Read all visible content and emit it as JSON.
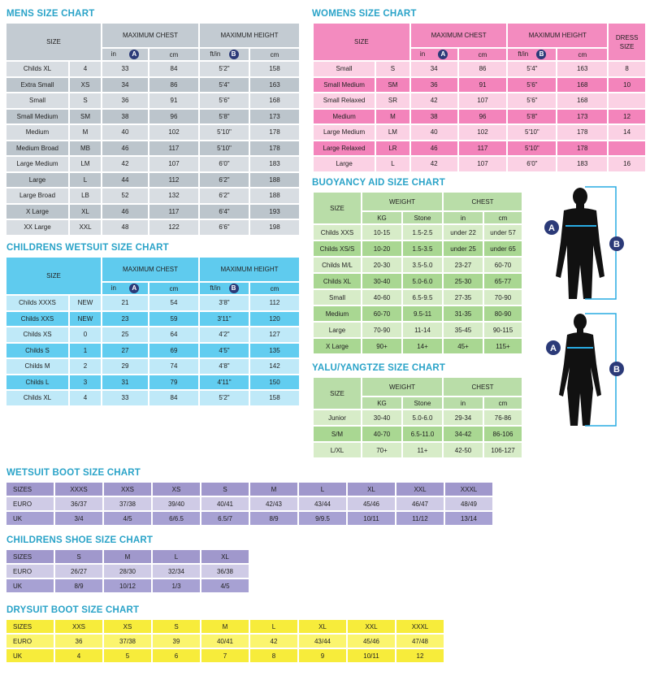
{
  "mens": {
    "title": "MENS SIZE CHART",
    "size_header": "SIZE",
    "chest_header": "MAXIMUM CHEST",
    "height_header": "MAXIMUM HEIGHT",
    "chest_units": [
      "in",
      "A",
      "cm"
    ],
    "height_units": [
      "ft/in",
      "B",
      "cm"
    ],
    "rows": [
      [
        "Childs XL",
        "4",
        "33",
        "84",
        "5'2\"",
        "158"
      ],
      [
        "Extra Small",
        "XS",
        "34",
        "86",
        "5'4\"",
        "163"
      ],
      [
        "Small",
        "S",
        "36",
        "91",
        "5'6\"",
        "168"
      ],
      [
        "Small Medium",
        "SM",
        "38",
        "96",
        "5'8\"",
        "173"
      ],
      [
        "Medium",
        "M",
        "40",
        "102",
        "5'10\"",
        "178"
      ],
      [
        "Medium Broad",
        "MB",
        "46",
        "117",
        "5'10\"",
        "178"
      ],
      [
        "Large Medium",
        "LM",
        "42",
        "107",
        "6'0\"",
        "183"
      ],
      [
        "Large",
        "L",
        "44",
        "112",
        "6'2\"",
        "188"
      ],
      [
        "Large Broad",
        "LB",
        "52",
        "132",
        "6'2\"",
        "188"
      ],
      [
        "X Large",
        "XL",
        "46",
        "117",
        "6'4\"",
        "193"
      ],
      [
        "XX Large",
        "XXL",
        "48",
        "122",
        "6'6\"",
        "198"
      ]
    ]
  },
  "childrens_wetsuit": {
    "title": "CHILDRENS WETSUIT SIZE CHART",
    "size_header": "SIZE",
    "chest_header": "MAXIMUM CHEST",
    "height_header": "MAXIMUM HEIGHT",
    "chest_units": [
      "in",
      "A",
      "cm"
    ],
    "height_units": [
      "ft/in",
      "B",
      "cm"
    ],
    "rows": [
      [
        "Childs XXXS",
        "NEW",
        "21",
        "54",
        "3'8\"",
        "112"
      ],
      [
        "Childs XXS",
        "NEW",
        "23",
        "59",
        "3'11\"",
        "120"
      ],
      [
        "Childs XS",
        "0",
        "25",
        "64",
        "4'2\"",
        "127"
      ],
      [
        "Childs S",
        "1",
        "27",
        "69",
        "4'5\"",
        "135"
      ],
      [
        "Childs M",
        "2",
        "29",
        "74",
        "4'8\"",
        "142"
      ],
      [
        "Childs L",
        "3",
        "31",
        "79",
        "4'11\"",
        "150"
      ],
      [
        "Childs XL",
        "4",
        "33",
        "84",
        "5'2\"",
        "158"
      ]
    ]
  },
  "womens": {
    "title": "WOMENS SIZE CHART",
    "size_header": "SIZE",
    "chest_header": "MAXIMUM CHEST",
    "height_header": "MAXIMUM HEIGHT",
    "dress_header": "DRESS SIZE",
    "chest_units": [
      "in",
      "A",
      "cm"
    ],
    "height_units": [
      "ft/in",
      "B",
      "cm"
    ],
    "rows": [
      [
        "Small",
        "S",
        "34",
        "86",
        "5'4\"",
        "163",
        "8"
      ],
      [
        "Small Medium",
        "SM",
        "36",
        "91",
        "5'6\"",
        "168",
        "10"
      ],
      [
        "Small Relaxed",
        "SR",
        "42",
        "107",
        "5'6\"",
        "168",
        ""
      ],
      [
        "Medium",
        "M",
        "38",
        "96",
        "5'8\"",
        "173",
        "12"
      ],
      [
        "Large Medium",
        "LM",
        "40",
        "102",
        "5'10\"",
        "178",
        "14"
      ],
      [
        "Large Relaxed",
        "LR",
        "46",
        "117",
        "5'10\"",
        "178",
        ""
      ],
      [
        "Large",
        "L",
        "42",
        "107",
        "6'0\"",
        "183",
        "16"
      ]
    ]
  },
  "buoyancy": {
    "title": "BUOYANCY AID SIZE CHART",
    "size_header": "SIZE",
    "weight_header": "WEIGHT",
    "chest_header": "CHEST",
    "weight_units": [
      "KG",
      "Stone"
    ],
    "chest_units": [
      "in",
      "cm"
    ],
    "rows": [
      [
        "Childs XXS",
        "10-15",
        "1.5-2.5",
        "under 22",
        "under 57"
      ],
      [
        "Childs XS/S",
        "10-20",
        "1.5-3.5",
        "under 25",
        "under 65"
      ],
      [
        "Childs M/L",
        "20-30",
        "3.5-5.0",
        "23-27",
        "60-70"
      ],
      [
        "Childs XL",
        "30-40",
        "5.0-6.0",
        "25-30",
        "65-77"
      ],
      [
        "Small",
        "40-60",
        "6.5-9.5",
        "27-35",
        "70-90"
      ],
      [
        "Medium",
        "60-70",
        "9.5-11",
        "31-35",
        "80-90"
      ],
      [
        "Large",
        "70-90",
        "11-14",
        "35-45",
        "90-115"
      ],
      [
        "X Large",
        "90+",
        "14+",
        "45+",
        "115+"
      ]
    ]
  },
  "yalu": {
    "title": "YALU/YANGTZE SIZE CHART",
    "size_header": "SIZE",
    "weight_header": "WEIGHT",
    "chest_header": "CHEST",
    "weight_units": [
      "KG",
      "Stone"
    ],
    "chest_units": [
      "in",
      "cm"
    ],
    "rows": [
      [
        "Junior",
        "30-40",
        "5.0-6.0",
        "29-34",
        "76-86"
      ],
      [
        "S/M",
        "40-70",
        "6.5-11.0",
        "34-42",
        "86-106"
      ],
      [
        "L/XL",
        "70+",
        "11+",
        "42-50",
        "106-127"
      ]
    ]
  },
  "wetsuit_boot": {
    "title": "WETSUIT BOOT SIZE CHART",
    "rows": [
      [
        "SIZES",
        "XXXS",
        "XXS",
        "XS",
        "S",
        "M",
        "L",
        "XL",
        "XXL",
        "XXXL"
      ],
      [
        "EURO",
        "36/37",
        "37/38",
        "39/40",
        "40/41",
        "42/43",
        "43/44",
        "45/46",
        "46/47",
        "48/49"
      ],
      [
        "UK",
        "3/4",
        "4/5",
        "6/6.5",
        "6.5/7",
        "8/9",
        "9/9.5",
        "10/11",
        "11/12",
        "13/14"
      ]
    ]
  },
  "childrens_shoe": {
    "title": "CHILDRENS SHOE SIZE CHART",
    "rows": [
      [
        "SIZES",
        "S",
        "M",
        "L",
        "XL"
      ],
      [
        "EURO",
        "26/27",
        "28/30",
        "32/34",
        "36/38"
      ],
      [
        "UK",
        "8/9",
        "10/12",
        "1/3",
        "4/5"
      ]
    ]
  },
  "drysuit_boot": {
    "title": "DRYSUIT BOOT SIZE CHART",
    "rows": [
      [
        "SIZES",
        "XXS",
        "XS",
        "S",
        "M",
        "L",
        "XL",
        "XXL",
        "XXXL"
      ],
      [
        "EURO",
        "36",
        "37/38",
        "39",
        "40/41",
        "42",
        "43/44",
        "45/46",
        "47/48"
      ],
      [
        "UK",
        "4",
        "5",
        "6",
        "7",
        "8",
        "9",
        "10/11",
        "12"
      ]
    ]
  },
  "diagram": {
    "label_a": "A",
    "label_b": "B",
    "figure_color": "#111111",
    "marker_color": "#29abe2",
    "badge_color": "#2b3a78"
  }
}
